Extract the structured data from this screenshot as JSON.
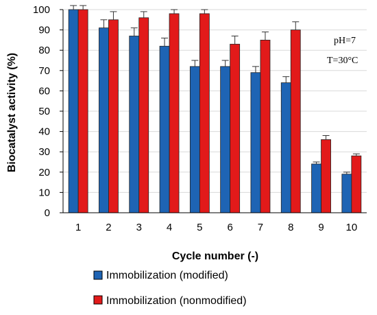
{
  "chart_data": {
    "type": "bar",
    "xlabel": "Cycle number (-)",
    "ylabel": "Biocatalyst activity (%)",
    "ylim": [
      0,
      100
    ],
    "yticks": [
      0,
      10,
      20,
      30,
      40,
      50,
      60,
      70,
      80,
      90,
      100
    ],
    "grid": true,
    "categories": [
      "1",
      "2",
      "3",
      "4",
      "5",
      "6",
      "7",
      "8",
      "9",
      "10"
    ],
    "series": [
      {
        "name": "Immobilization (modified)",
        "color": "#1e64b4",
        "values": [
          100,
          91,
          87,
          82,
          72,
          72,
          69,
          64,
          24,
          19
        ],
        "errors": [
          2,
          4,
          4,
          4,
          3,
          3,
          3,
          3,
          1,
          1
        ]
      },
      {
        "name": "Immobilization (nonmodified)",
        "color": "#e21a1a",
        "values": [
          100,
          95,
          96,
          98,
          98,
          83,
          85,
          90,
          36,
          28
        ],
        "errors": [
          2,
          4,
          3,
          2,
          2,
          4,
          4,
          4,
          2,
          1
        ]
      }
    ],
    "annotations": [
      "pH=7",
      "T=30°C"
    ],
    "legend_position": "bottom"
  }
}
